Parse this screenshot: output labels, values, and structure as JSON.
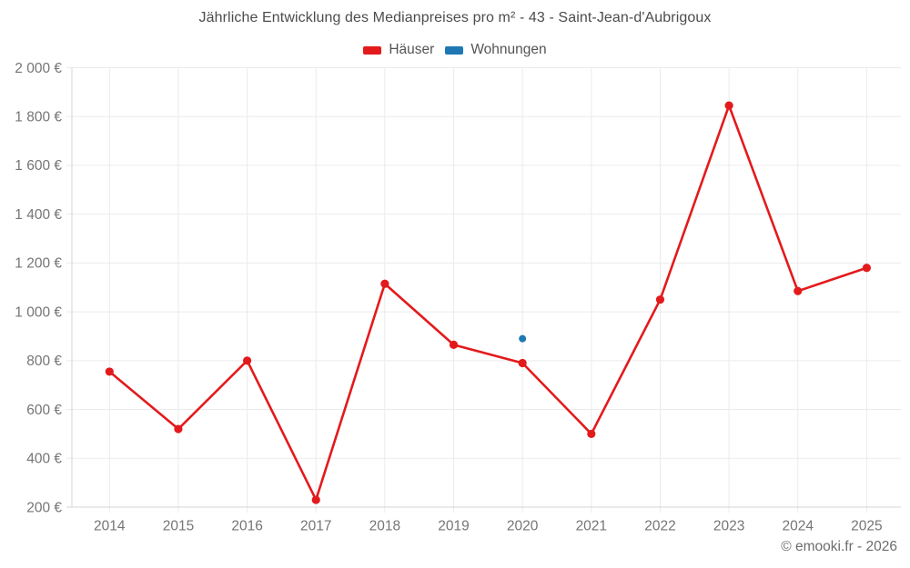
{
  "title": "Jährliche Entwicklung des Medianpreises pro m² - 43 - Saint-Jean-d'Aubrigoux",
  "legend": {
    "items": [
      {
        "label": "Häuser",
        "color": "#e31a1c"
      },
      {
        "label": "Wohnungen",
        "color": "#1f78b4"
      }
    ]
  },
  "footer": {
    "text": "© emooki.fr - 2026"
  },
  "colors": {
    "haeuser": "#e31a1c",
    "wohnungen": "#1f78b4",
    "grid": "#ebebeb",
    "axis": "#d6d6d6",
    "tick_text": "#757575",
    "title_text": "#4c4c4c"
  },
  "chart_data": {
    "type": "line",
    "title": "Jährliche Entwicklung des Medianpreises pro m² - 43 - Saint-Jean-d'Aubrigoux",
    "x": [
      "2014",
      "2015",
      "2016",
      "2017",
      "2018",
      "2019",
      "2020",
      "2021",
      "2022",
      "2023",
      "2024",
      "2025"
    ],
    "series": [
      {
        "name": "Häuser",
        "color": "#e31a1c",
        "values": [
          755,
          520,
          800,
          230,
          1115,
          865,
          790,
          500,
          1050,
          1845,
          1085,
          1180
        ],
        "point_radius": 4.6
      },
      {
        "name": "Wohnungen",
        "color": "#1f78b4",
        "values": [
          null,
          null,
          null,
          null,
          null,
          null,
          890,
          null,
          null,
          null,
          null,
          null
        ],
        "point_radius": 4
      }
    ],
    "ylim": [
      200,
      2000
    ],
    "ytick_step": 200,
    "ytick_labels": [
      "200 €",
      "400 €",
      "600 €",
      "800 €",
      "1 000 €",
      "1 200 €",
      "1 400 €",
      "1 600 €",
      "1 800 €",
      "2 000 €"
    ],
    "y_unit": "€",
    "xlabel": "",
    "ylabel": "",
    "grid": true,
    "legend_position": "top"
  }
}
